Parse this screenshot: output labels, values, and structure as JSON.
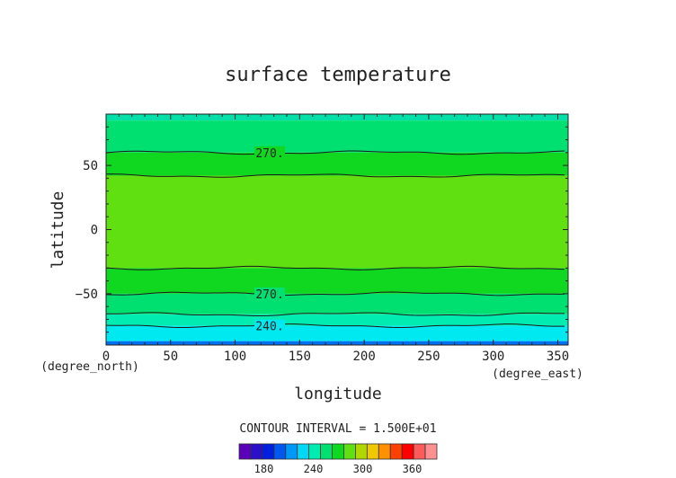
{
  "chart_data": {
    "type": "heatmap",
    "title": "surface temperature",
    "xlabel": "longitude",
    "ylabel": "latitude",
    "x_unit": "(degree_east)",
    "y_unit": "(degree_north)",
    "xlim": [
      0,
      358
    ],
    "ylim": [
      -90,
      90
    ],
    "x_ticks": [
      0,
      50,
      100,
      150,
      200,
      250,
      300,
      350
    ],
    "y_ticks": [
      -50,
      0,
      50
    ],
    "contour_interval_text": "CONTOUR INTERVAL = 1.500E+01",
    "contour_levels": [
      165,
      180,
      195,
      210,
      225,
      240,
      255,
      270,
      285,
      300,
      315,
      330,
      345,
      360,
      375
    ],
    "colorbar_ticks": [
      180,
      240,
      300,
      360
    ],
    "colorbar_colors": [
      "#5a00b8",
      "#2a10c8",
      "#0020e0",
      "#0058f0",
      "#0098f8",
      "#00d8f8",
      "#00ecb0",
      "#00e070",
      "#10d820",
      "#60e010",
      "#b0d800",
      "#f0c800",
      "#ff9000",
      "#ff4000",
      "#ff0000",
      "#ff5a5a",
      "#ff9090"
    ],
    "bands": [
      {
        "from": 90,
        "to": 85,
        "color": "#00e0a8"
      },
      {
        "from": 85,
        "to": 60,
        "color": "#00e070"
      },
      {
        "from": 60,
        "to": 42,
        "color": "#10d820"
      },
      {
        "from": 42,
        "to": -30,
        "color": "#60e010"
      },
      {
        "from": -30,
        "to": -50,
        "color": "#10d820"
      },
      {
        "from": -50,
        "to": -66,
        "color": "#00e070"
      },
      {
        "from": -66,
        "to": -75,
        "color": "#00ecb0"
      },
      {
        "from": -75,
        "to": -87,
        "color": "#00e8f0"
      },
      {
        "from": -87,
        "to": -90,
        "color": "#0070f0"
      }
    ],
    "contour_lines": [
      {
        "lat": 60,
        "label": "270."
      },
      {
        "lat": 42,
        "label": ""
      },
      {
        "lat": -30,
        "label": ""
      },
      {
        "lat": -50,
        "label": "270."
      },
      {
        "lat": -66,
        "label": ""
      },
      {
        "lat": -75,
        "label": "240."
      }
    ]
  }
}
